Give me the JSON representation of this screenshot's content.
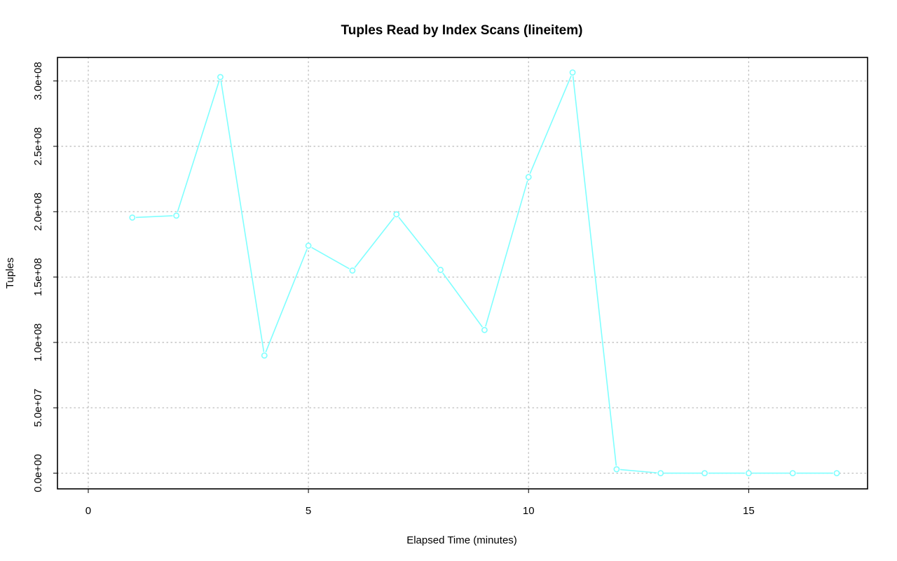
{
  "chart_data": {
    "type": "line",
    "title": "Tuples Read by Index Scans (lineitem)",
    "xlabel": "Elapsed Time (minutes)",
    "ylabel": "Tuples",
    "xlim": [
      -0.7,
      17.7
    ],
    "ylim": [
      -12000000,
      318000000
    ],
    "x_ticks": [
      0,
      5,
      10,
      15
    ],
    "x_tick_labels": [
      "0",
      "5",
      "10",
      "15"
    ],
    "y_ticks": [
      0,
      50000000,
      100000000,
      150000000,
      200000000,
      250000000,
      300000000
    ],
    "y_tick_labels": [
      "0.0e+00",
      "5.0e+07",
      "1.0e+08",
      "1.5e+08",
      "2.0e+08",
      "2.5e+08",
      "3.0e+08"
    ],
    "grid": true,
    "legend": "none",
    "series": [
      {
        "color": "#7fffff",
        "marker": "open-circle",
        "x": [
          1,
          2,
          3,
          4,
          5,
          6,
          7,
          8,
          9,
          10,
          11,
          12,
          13,
          14,
          15,
          16,
          17
        ],
        "y": [
          195500000,
          197000000,
          303000000,
          90000000,
          174000000,
          155000000,
          198000000,
          155500000,
          109500000,
          226500000,
          306500000,
          3000000,
          0,
          0,
          0,
          0,
          0
        ]
      }
    ]
  }
}
